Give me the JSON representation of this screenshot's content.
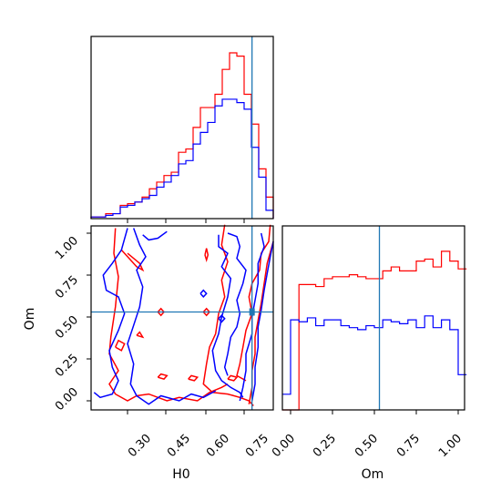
{
  "chart_data": [
    {
      "type": "histogram",
      "panel": "H0 marginal",
      "truth": 0.74,
      "bins": [
        0.21,
        0.234,
        0.258,
        0.282,
        0.306,
        0.33,
        0.354,
        0.378,
        0.402,
        0.426,
        0.45,
        0.474,
        0.498,
        0.522,
        0.546,
        0.57,
        0.594,
        0.618,
        0.642,
        0.666,
        0.69,
        0.714,
        0.738,
        0.762,
        0.786,
        0.81
      ],
      "series": [
        {
          "color": "#ff0000",
          "counts": [
            1,
            1,
            3,
            3,
            8,
            9,
            10,
            13,
            18,
            22,
            26,
            28,
            40,
            42,
            55,
            67,
            67,
            75,
            90,
            100,
            98,
            75,
            57,
            30,
            13
          ]
        },
        {
          "color": "#0000ff",
          "counts": [
            1,
            1,
            2,
            3,
            7,
            8,
            10,
            12,
            14,
            19,
            22,
            26,
            33,
            35,
            45,
            52,
            58,
            68,
            72,
            72,
            70,
            66,
            43,
            25,
            5
          ]
        }
      ]
    },
    {
      "type": "contour",
      "panel": "H0 vs Om",
      "x_tick_labels": [
        "0.30",
        "0.45",
        "0.60",
        "0.75"
      ],
      "y_tick_labels": [
        "0.00",
        "0.25",
        "0.50",
        "0.75",
        "1.00"
      ],
      "xlabel": "H0",
      "ylabel": "Om",
      "truth": {
        "x": 0.74,
        "y": 0.53
      },
      "series": [
        {
          "color": "#ff0000"
        },
        {
          "color": "#0000ff"
        }
      ]
    },
    {
      "type": "histogram",
      "panel": "Om marginal",
      "truth": 0.53,
      "x_tick_labels": [
        "0.00",
        "0.25",
        "0.50",
        "0.75",
        "1.00"
      ],
      "xlabel": "Om",
      "bins": [
        -0.05,
        0.0,
        0.05,
        0.1,
        0.15,
        0.2,
        0.25,
        0.3,
        0.35,
        0.4,
        0.45,
        0.5,
        0.55,
        0.6,
        0.65,
        0.7,
        0.75,
        0.8,
        0.85,
        0.9,
        0.95,
        1.0,
        1.05
      ],
      "series": [
        {
          "color": "#ff0000",
          "counts": [
            0,
            0,
            64,
            64,
            63,
            67,
            68,
            68,
            69,
            68,
            67,
            67,
            71,
            73,
            71,
            71,
            76,
            77,
            73,
            81,
            76,
            72
          ]
        },
        {
          "color": "#0000ff",
          "counts": [
            8,
            46,
            45,
            47,
            43,
            46,
            46,
            43,
            42,
            41,
            43,
            42,
            46,
            45,
            44,
            46,
            42,
            48,
            42,
            46,
            41,
            18
          ]
        }
      ]
    }
  ]
}
